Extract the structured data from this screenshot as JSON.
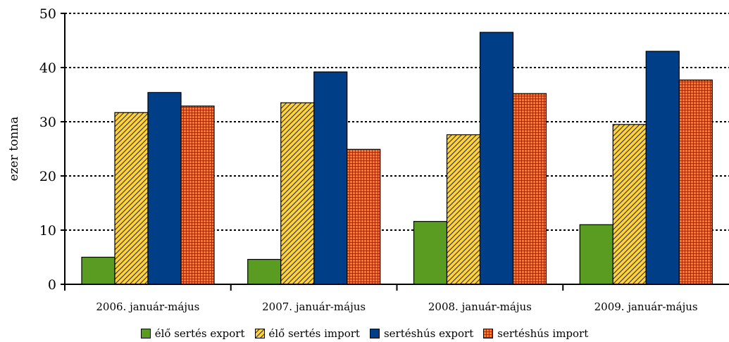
{
  "chart_data": {
    "type": "bar",
    "ylabel": "ezer tonna",
    "ylim": [
      0,
      50
    ],
    "yticks": [
      0,
      10,
      20,
      30,
      40,
      50
    ],
    "grid": "horizontal-dotted",
    "legend_position": "bottom",
    "categories": [
      "2006. január-május",
      "2007. január-május",
      "2008. január-május",
      "2009. január-május"
    ],
    "series": [
      {
        "name": "élő sertés export",
        "values": [
          5.0,
          4.6,
          11.6,
          11.0
        ],
        "color": "#5a9b22",
        "pattern": "solid"
      },
      {
        "name": "élő sertés import",
        "values": [
          31.7,
          33.5,
          27.6,
          29.5
        ],
        "color": "#ffd23a",
        "pattern": "diagonal-hatch"
      },
      {
        "name": "sertéshús export",
        "values": [
          35.4,
          39.2,
          46.5,
          43.0
        ],
        "color": "#003f87",
        "pattern": "solid"
      },
      {
        "name": "sertéshús import",
        "values": [
          32.9,
          24.9,
          35.2,
          37.7
        ],
        "color": "#ff7a1c",
        "pattern": "grid"
      }
    ]
  }
}
